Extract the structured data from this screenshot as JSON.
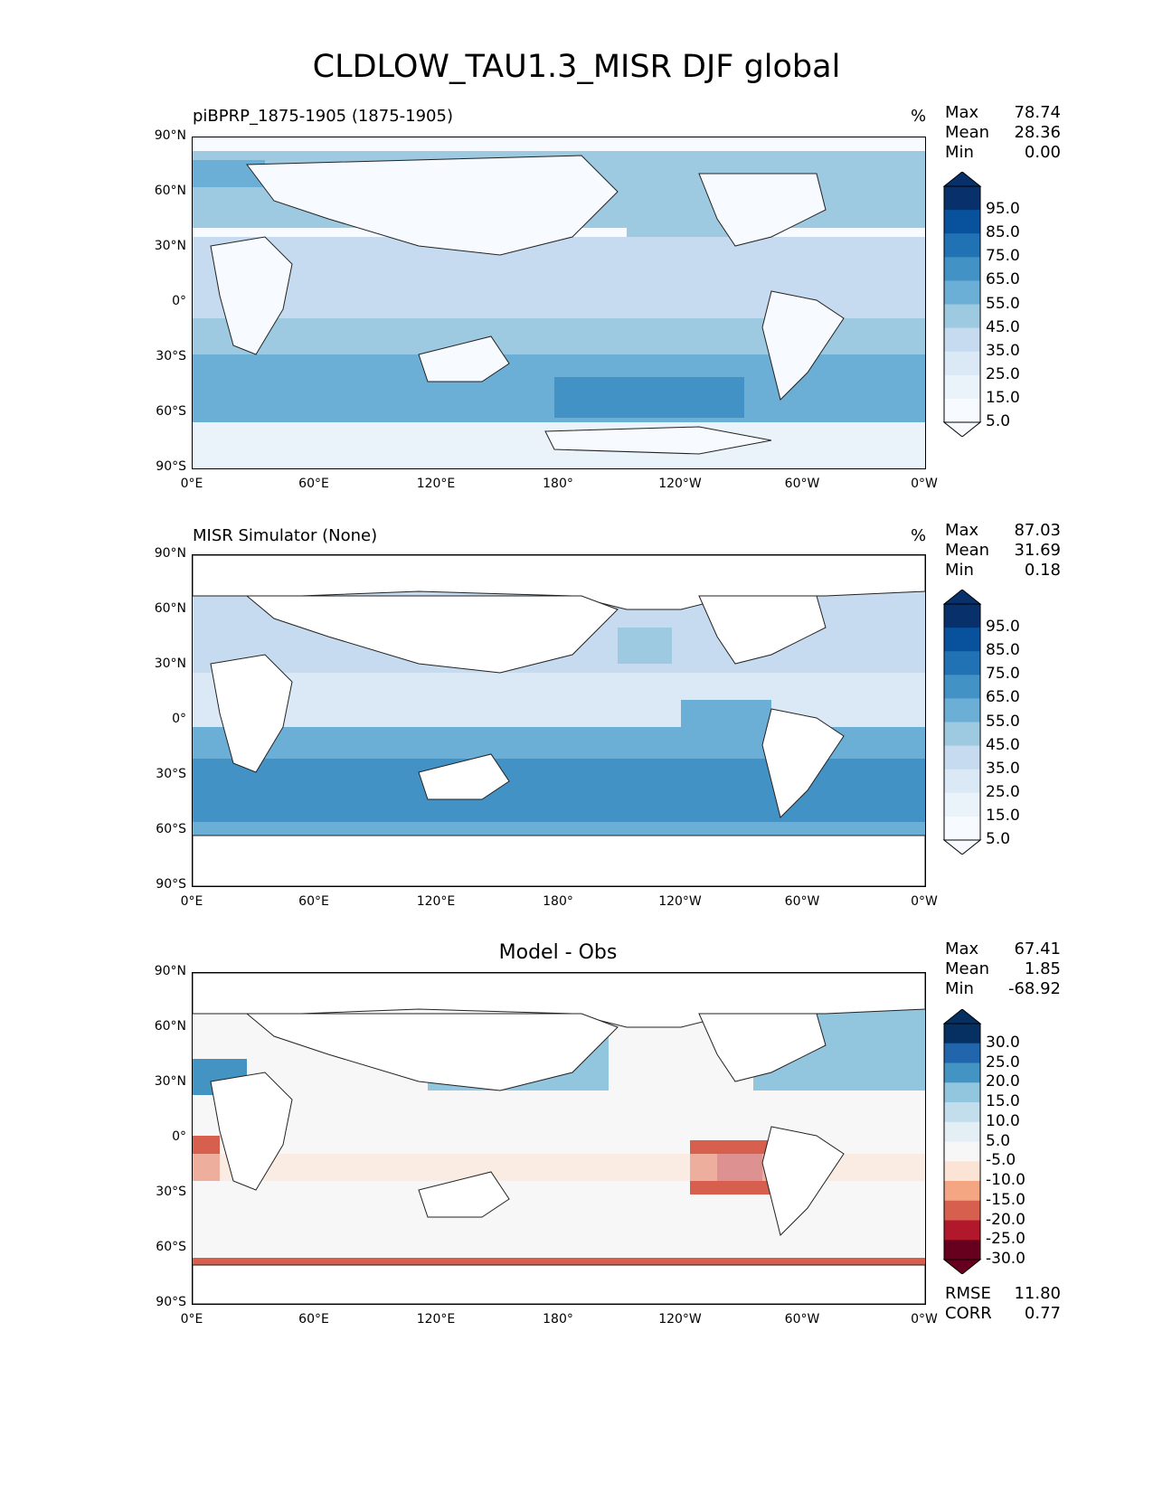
{
  "title": "CLDLOW_TAU1.3_MISR DJF global",
  "lat_ticks": [
    "90°N",
    "60°N",
    "30°N",
    "0°",
    "30°S",
    "60°S",
    "90°S"
  ],
  "lon_ticks": [
    "0°E",
    "60°E",
    "120°E",
    "180°",
    "120°W",
    "60°W",
    "0°W"
  ],
  "panels": [
    {
      "title": "piBPRP_1875-1905 (1875-1905)",
      "units": "%",
      "stats": [
        {
          "label": "Max",
          "value": "78.74"
        },
        {
          "label": "Mean",
          "value": "28.36"
        },
        {
          "label": "Min",
          "value": "0.00"
        }
      ],
      "colorbar": {
        "labels": [
          "95.0",
          "85.0",
          "75.0",
          "65.0",
          "55.0",
          "45.0",
          "35.0",
          "25.0",
          "15.0",
          "5.0"
        ],
        "colors": [
          "#08306b",
          "#08519c",
          "#2171b5",
          "#4292c6",
          "#6baed6",
          "#9ecae1",
          "#c6dbef",
          "#dbe9f6",
          "#eaf2fa",
          "#f7fbff"
        ]
      }
    },
    {
      "title": "MISR Simulator (None)",
      "units": "%",
      "stats": [
        {
          "label": "Max",
          "value": "87.03"
        },
        {
          "label": "Mean",
          "value": "31.69"
        },
        {
          "label": "Min",
          "value": "0.18"
        }
      ],
      "colorbar": {
        "labels": [
          "95.0",
          "85.0",
          "75.0",
          "65.0",
          "55.0",
          "45.0",
          "35.0",
          "25.0",
          "15.0",
          "5.0"
        ],
        "colors": [
          "#08306b",
          "#08519c",
          "#2171b5",
          "#4292c6",
          "#6baed6",
          "#9ecae1",
          "#c6dbef",
          "#dbe9f6",
          "#eaf2fa",
          "#f7fbff"
        ]
      }
    },
    {
      "title": "Model - Obs",
      "units": "",
      "stats": [
        {
          "label": "Max",
          "value": "67.41"
        },
        {
          "label": "Mean",
          "value": "1.85"
        },
        {
          "label": "Min",
          "value": "-68.92"
        }
      ],
      "extra_stats": [
        {
          "label": "RMSE",
          "value": "11.80"
        },
        {
          "label": "CORR",
          "value": "0.77"
        }
      ],
      "colorbar": {
        "labels": [
          "30.0",
          "25.0",
          "20.0",
          "15.0",
          "10.0",
          "5.0",
          "-5.0",
          "-10.0",
          "-15.0",
          "-20.0",
          "-25.0",
          "-30.0"
        ],
        "colors": [
          "#053061",
          "#2166ac",
          "#4393c3",
          "#92c5de",
          "#c2ddec",
          "#e4eef5",
          "#f7f7f7",
          "#fbe3d6",
          "#f4a582",
          "#d6604d",
          "#b2182b",
          "#67001f"
        ]
      }
    }
  ]
}
